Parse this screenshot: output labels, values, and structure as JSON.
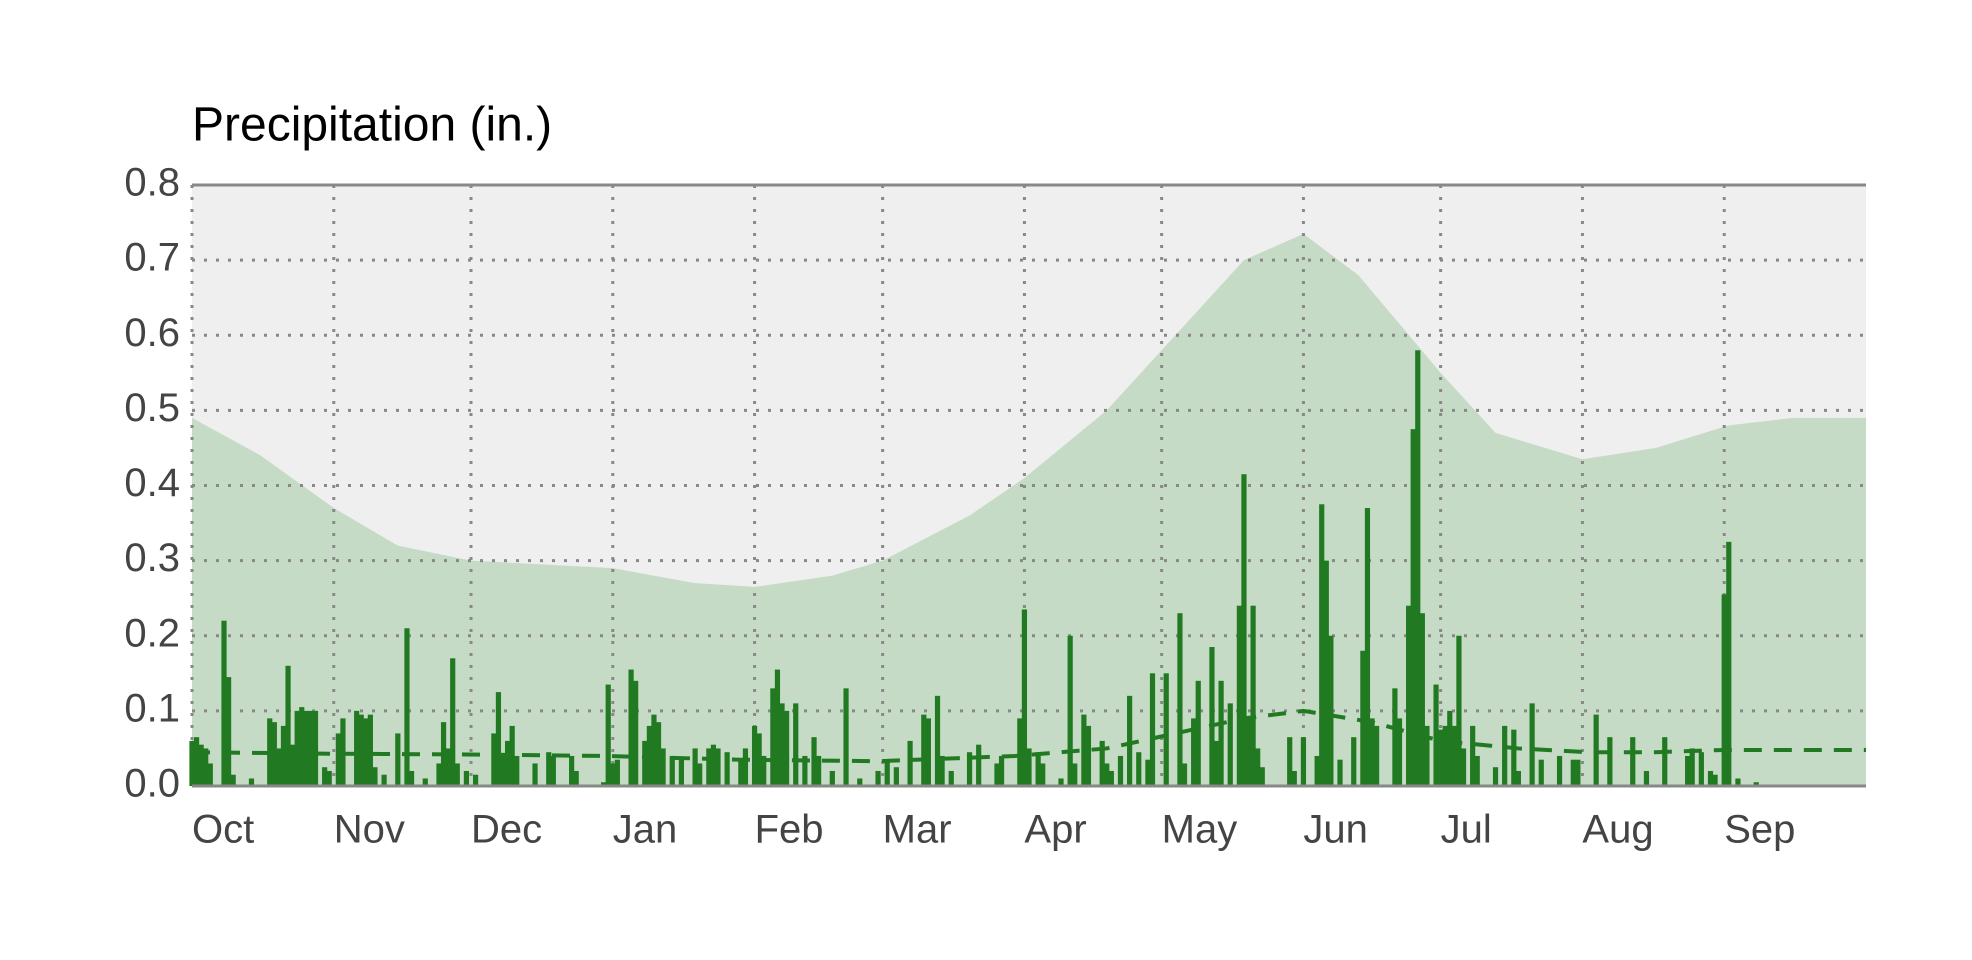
{
  "chart_data": {
    "type": "bar",
    "title": "Precipitation (in.)",
    "color": "#217a21",
    "x": [
      0,
      1,
      2,
      3,
      4,
      7,
      8,
      9,
      13,
      17,
      18,
      19,
      20,
      21,
      22,
      23,
      24,
      25,
      26,
      27,
      29,
      30,
      32,
      33,
      36,
      37,
      38,
      39,
      40,
      42,
      45,
      47,
      48,
      51,
      54,
      55,
      56,
      57,
      58,
      60,
      62,
      66,
      67,
      68,
      69,
      70,
      71,
      75,
      78,
      79,
      83,
      84,
      90,
      91,
      92,
      93,
      96,
      97,
      99,
      100,
      101,
      102,
      103,
      105,
      107,
      110,
      111,
      113,
      114,
      115,
      117,
      120,
      121,
      123,
      124,
      125,
      127,
      128,
      129,
      130,
      132,
      134,
      136,
      137,
      140,
      143,
      146,
      150,
      152,
      154,
      157,
      160,
      161,
      163,
      164,
      166,
      170,
      172,
      176,
      177,
      181,
      182,
      183,
      185,
      186,
      190,
      192,
      193,
      195,
      196,
      199,
      200,
      201,
      203,
      205,
      207,
      209,
      210,
      213,
      216,
      217,
      219,
      220,
      223,
      224,
      225,
      227,
      229,
      230,
      231,
      232,
      233,
      234,
      240,
      241,
      243,
      246,
      247,
      248,
      249,
      251,
      254,
      256,
      257,
      258,
      259,
      263,
      264,
      266,
      267,
      268,
      269,
      270,
      272,
      273,
      274,
      275,
      276,
      277,
      278,
      280,
      281,
      285,
      287,
      289,
      290,
      293,
      295,
      299,
      302,
      303,
      307,
      310,
      315,
      318,
      322,
      327,
      328,
      330,
      332,
      333,
      335,
      336,
      338,
      342
    ],
    "values": [
      0.06,
      0.065,
      0.055,
      0.05,
      0.03,
      0.22,
      0.145,
      0.015,
      0.01,
      0.09,
      0.085,
      0.05,
      0.08,
      0.16,
      0.055,
      0.1,
      0.105,
      0.1,
      0.1,
      0.1,
      0.025,
      0.02,
      0.07,
      0.09,
      0.1,
      0.095,
      0.09,
      0.095,
      0.025,
      0.015,
      0.07,
      0.21,
      0.02,
      0.01,
      0.03,
      0.085,
      0.05,
      0.17,
      0.03,
      0.02,
      0.015,
      0.07,
      0.125,
      0.04,
      0.06,
      0.08,
      0.04,
      0.03,
      0.045,
      0.04,
      0.04,
      0.02,
      0.005,
      0.135,
      0.03,
      0.035,
      0.155,
      0.14,
      0.06,
      0.08,
      0.095,
      0.085,
      0.05,
      0.04,
      0.035,
      0.05,
      0.03,
      0.05,
      0.055,
      0.05,
      0.045,
      0.035,
      0.05,
      0.08,
      0.07,
      0.04,
      0.13,
      0.155,
      0.11,
      0.1,
      0.11,
      0.04,
      0.065,
      0.04,
      0.02,
      0.13,
      0.01,
      0.02,
      0.035,
      0.025,
      0.06,
      0.095,
      0.09,
      0.12,
      0.04,
      0.02,
      0.045,
      0.055,
      0.03,
      0.04,
      0.09,
      0.235,
      0.05,
      0.045,
      0.03,
      0.01,
      0.2,
      0.03,
      0.095,
      0.08,
      0.06,
      0.03,
      0.02,
      0.04,
      0.12,
      0.045,
      0.035,
      0.15,
      0.15,
      0.23,
      0.03,
      0.09,
      0.14,
      0.185,
      0.06,
      0.14,
      0.11,
      0.24,
      0.415,
      0.09,
      0.24,
      0.05,
      0.025,
      0.065,
      0.02,
      0.065,
      0.04,
      0.375,
      0.3,
      0.2,
      0.035,
      0.065,
      0.18,
      0.37,
      0.09,
      0.08,
      0.13,
      0.09,
      0.24,
      0.475,
      0.58,
      0.23,
      0.08,
      0.135,
      0.075,
      0.08,
      0.1,
      0.08,
      0.2,
      0.05,
      0.08,
      0.04,
      0.025,
      0.08,
      0.075,
      0.02,
      0.11,
      0.035,
      0.04,
      0.035,
      0.035,
      0.095,
      0.065,
      0.065,
      0.02,
      0.065,
      0.04,
      0.05,
      0.045,
      0.02,
      0.015,
      0.255,
      0.325,
      0.01,
      0.005
    ],
    "envelope": {
      "color": "#c5dbc5",
      "x": [
        0,
        15,
        31,
        45,
        61,
        92,
        110,
        123,
        140,
        151,
        170,
        182,
        200,
        212,
        230,
        243,
        255,
        273,
        285,
        304,
        320,
        336,
        350,
        366
      ],
      "values": [
        0.49,
        0.44,
        0.37,
        0.32,
        0.3,
        0.29,
        0.27,
        0.265,
        0.28,
        0.3,
        0.36,
        0.41,
        0.5,
        0.58,
        0.7,
        0.735,
        0.68,
        0.55,
        0.47,
        0.435,
        0.45,
        0.48,
        0.49,
        0.49
      ]
    },
    "average": {
      "color": "#217a21",
      "x": [
        0,
        30,
        60,
        90,
        120,
        150,
        180,
        200,
        215,
        230,
        243,
        258,
        273,
        290,
        305,
        320,
        335,
        366
      ],
      "values": [
        0.045,
        0.043,
        0.042,
        0.04,
        0.035,
        0.033,
        0.04,
        0.05,
        0.07,
        0.09,
        0.1,
        0.085,
        0.06,
        0.05,
        0.045,
        0.045,
        0.048,
        0.048
      ]
    },
    "xlim": [
      0,
      366
    ],
    "ylim": [
      0,
      0.8
    ],
    "xticks": [
      {
        "value": 0,
        "label": "Oct"
      },
      {
        "value": 31,
        "label": "Nov"
      },
      {
        "value": 61,
        "label": "Dec"
      },
      {
        "value": 92,
        "label": "Jan"
      },
      {
        "value": 123,
        "label": "Feb"
      },
      {
        "value": 151,
        "label": "Mar"
      },
      {
        "value": 182,
        "label": "Apr"
      },
      {
        "value": 212,
        "label": "May"
      },
      {
        "value": 243,
        "label": "Jun"
      },
      {
        "value": 273,
        "label": "Jul"
      },
      {
        "value": 304,
        "label": "Aug"
      },
      {
        "value": 335,
        "label": "Sep"
      }
    ],
    "yticks": [
      {
        "value": 0,
        "label": "0.0"
      },
      {
        "value": 0.1,
        "label": "0.1"
      },
      {
        "value": 0.2,
        "label": "0.2"
      },
      {
        "value": 0.3,
        "label": "0.3"
      },
      {
        "value": 0.4,
        "label": "0.4"
      },
      {
        "value": 0.5,
        "label": "0.5"
      },
      {
        "value": 0.6,
        "label": "0.6"
      },
      {
        "value": 0.7,
        "label": "0.7"
      },
      {
        "value": 0.8,
        "label": "0.8"
      }
    ],
    "grid": true
  }
}
